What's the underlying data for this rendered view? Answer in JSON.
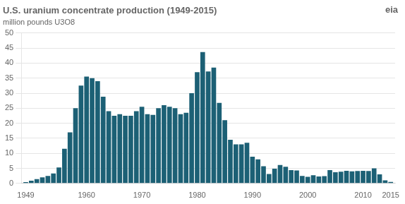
{
  "chart_data": {
    "type": "bar",
    "title": "U.S. uranium concentrate production (1949-2015)",
    "ylabel": "million pounds U3O8",
    "annotations": [
      "eia"
    ],
    "x": [
      1949,
      1950,
      1951,
      1952,
      1953,
      1954,
      1955,
      1956,
      1957,
      1958,
      1959,
      1960,
      1961,
      1962,
      1963,
      1964,
      1965,
      1966,
      1967,
      1968,
      1969,
      1970,
      1971,
      1972,
      1973,
      1974,
      1975,
      1976,
      1977,
      1978,
      1979,
      1980,
      1981,
      1982,
      1983,
      1984,
      1985,
      1986,
      1987,
      1988,
      1989,
      1990,
      1991,
      1992,
      1993,
      1994,
      1995,
      1996,
      1997,
      1998,
      1999,
      2000,
      2001,
      2002,
      2003,
      2004,
      2005,
      2006,
      2007,
      2008,
      2009,
      2010,
      2011,
      2012,
      2013,
      2014,
      2015
    ],
    "values": [
      0.4,
      0.9,
      1.4,
      2.0,
      2.5,
      3.3,
      5.3,
      11.5,
      17.0,
      25.0,
      32.5,
      35.5,
      35.0,
      34.0,
      28.8,
      24.0,
      22.5,
      23.0,
      22.5,
      22.5,
      24.0,
      25.5,
      23.0,
      22.8,
      25.0,
      26.0,
      25.5,
      25.0,
      23.0,
      23.5,
      30.0,
      37.0,
      43.7,
      37.2,
      38.5,
      26.8,
      21.0,
      14.5,
      13.0,
      13.0,
      13.5,
      8.9,
      8.0,
      5.7,
      3.1,
      4.9,
      6.1,
      5.5,
      4.4,
      4.3,
      2.5,
      2.2,
      2.7,
      2.3,
      2.4,
      4.4,
      3.7,
      3.9,
      4.2,
      4.0,
      4.1,
      4.2,
      4.1,
      5.0,
      3.0,
      1.0,
      0.5
    ],
    "color": "#1c6075",
    "xlim": [
      1948.2,
      2015.8
    ],
    "xticks": [
      1949,
      1960,
      1970,
      1980,
      1990,
      2000,
      2010,
      2015
    ],
    "ylim": [
      0,
      50
    ],
    "yticks": [
      0,
      5,
      10,
      15,
      20,
      25,
      30,
      35,
      40,
      45,
      50
    ],
    "grid": true
  }
}
